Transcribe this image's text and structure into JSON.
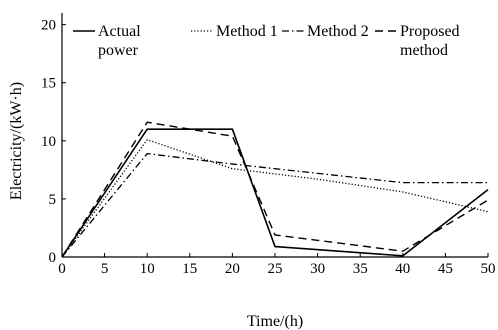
{
  "chart_data": {
    "type": "line",
    "xlabel": "Time/(h)",
    "ylabel": "Electricity/(kW·h)",
    "xlim": [
      0,
      50
    ],
    "ylim": [
      0,
      21
    ],
    "xticks": [
      0,
      5,
      10,
      15,
      20,
      25,
      30,
      35,
      40,
      45,
      50
    ],
    "yticks": [
      0,
      5,
      10,
      15,
      20
    ],
    "grid": false,
    "legend_position": "top",
    "series": [
      {
        "name": "Actual power",
        "legend_lines": [
          "Actual",
          "power"
        ],
        "dash": "solid",
        "color": "#000000",
        "x": [
          0,
          10,
          20,
          25,
          40,
          50
        ],
        "y": [
          0,
          11.0,
          11.0,
          0.9,
          0.1,
          5.8
        ]
      },
      {
        "name": "Method 1",
        "legend_lines": [
          "Method 1"
        ],
        "dash": "dotted",
        "color": "#000000",
        "x": [
          0,
          10,
          20,
          30,
          40,
          50
        ],
        "y": [
          0,
          10.1,
          7.6,
          6.7,
          5.6,
          3.9
        ]
      },
      {
        "name": "Method 2",
        "legend_lines": [
          "Method 2"
        ],
        "dash": "dash-dot",
        "color": "#000000",
        "x": [
          0,
          10,
          20,
          30,
          40,
          50
        ],
        "y": [
          0,
          8.9,
          8.0,
          7.2,
          6.4,
          6.4
        ]
      },
      {
        "name": "Proposed method",
        "legend_lines": [
          "Proposed",
          "method"
        ],
        "dash": "dashed",
        "color": "#000000",
        "x": [
          0,
          10,
          20,
          25,
          40,
          50
        ],
        "y": [
          0,
          11.6,
          10.4,
          1.9,
          0.5,
          4.9
        ]
      }
    ]
  }
}
